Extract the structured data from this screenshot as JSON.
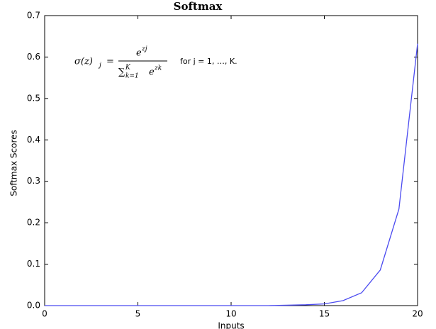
{
  "chart_data": {
    "type": "line",
    "title": "Softmax",
    "xlabel": "Inputs",
    "ylabel": "Softmax Scores",
    "x": [
      0,
      1,
      2,
      3,
      4,
      5,
      6,
      7,
      8,
      9,
      10,
      11,
      12,
      13,
      14,
      15,
      16,
      17,
      18,
      19,
      20
    ],
    "series": [
      {
        "name": "softmax",
        "color": "#4b4bf0",
        "values": [
          0,
          0,
          0,
          0,
          0,
          0,
          0,
          0,
          0,
          0,
          0,
          0,
          0,
          0.001,
          0.002,
          0.004,
          0.012,
          0.031,
          0.086,
          0.233,
          0.632
        ]
      }
    ],
    "xlim": [
      0,
      20
    ],
    "xticks": [
      0,
      5,
      10,
      15,
      20
    ],
    "ylim": [
      0,
      0.7
    ],
    "yticks": [
      {
        "value": 0,
        "label": "0.0"
      },
      0.1,
      0.2,
      0.3,
      0.4,
      0.5,
      0.6,
      0.7
    ],
    "annotation": {
      "lhs": "σ(z)",
      "lhs_sub": "j",
      "eq": "=",
      "numerator": "e",
      "numerator_sup": "zj",
      "sum": "∑",
      "sum_upper": "K",
      "sum_lower": "k=1",
      "denominator": "e",
      "denominator_sup": "zk",
      "condition": "for j = 1, …, K."
    }
  }
}
